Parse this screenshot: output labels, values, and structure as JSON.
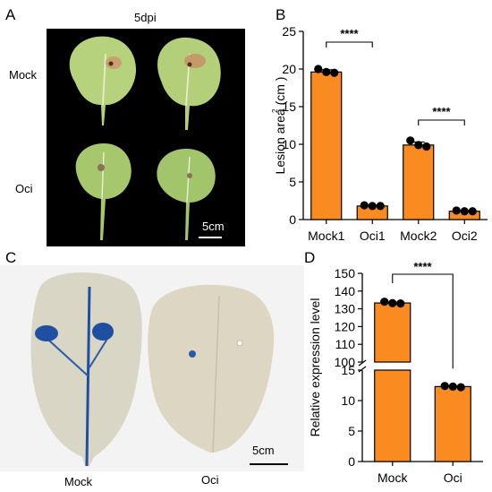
{
  "panel_a": {
    "letter": "A",
    "title": "5dpi",
    "rows": [
      "Mock",
      "Oci"
    ],
    "scale_label": "5cm",
    "colors": {
      "background": "#000000",
      "leaf": "#b7d27c",
      "lesion": "#7a4b2e"
    }
  },
  "panel_c": {
    "letter": "C",
    "labels": [
      "Mock",
      "Oci"
    ],
    "scale_label": "5cm",
    "colors": {
      "stain": "#1f4fa0",
      "leaf": "#d8d4c2"
    }
  },
  "significance": "****",
  "chart_data": [
    {
      "panel": "B",
      "type": "bar",
      "categories": [
        "Mock1",
        "Oci1",
        "Mock2",
        "Oci2"
      ],
      "values": [
        19.6,
        1.8,
        9.9,
        1.1
      ],
      "points": [
        [
          20.0,
          19.6,
          19.5
        ],
        [
          1.9,
          1.8,
          1.8
        ],
        [
          10.5,
          9.9,
          9.7
        ],
        [
          1.2,
          1.1,
          1.1
        ]
      ],
      "errors": [
        0.3,
        0.1,
        0.4,
        0.1
      ],
      "ylabel": "Lesion area (cm )",
      "ylabel_sup": "2",
      "ylim": [
        0,
        25
      ],
      "yticks": [
        0,
        5,
        10,
        15,
        20,
        25
      ],
      "comparisons": [
        {
          "from": 0,
          "to": 1,
          "label": "****"
        },
        {
          "from": 2,
          "to": 3,
          "label": "****"
        }
      ],
      "bar_color": "#f98b20"
    },
    {
      "panel": "D",
      "type": "bar",
      "categories": [
        "Mock",
        "Oci"
      ],
      "values": [
        133.3,
        12.3
      ],
      "points": [
        [
          134.0,
          133.2,
          133.0
        ],
        [
          12.4,
          12.3,
          12.2
        ]
      ],
      "errors": [
        0.5,
        0.1
      ],
      "ylabel": "Relative expression level",
      "y_axis_break": {
        "lower": [
          0,
          15
        ],
        "upper": [
          100,
          150
        ]
      },
      "yticks_lower": [
        0,
        5,
        10,
        15
      ],
      "yticks_upper": [
        100,
        110,
        120,
        130,
        140,
        150
      ],
      "comparisons": [
        {
          "from": 0,
          "to": 1,
          "label": "****"
        }
      ],
      "bar_color": "#f98b20"
    }
  ]
}
